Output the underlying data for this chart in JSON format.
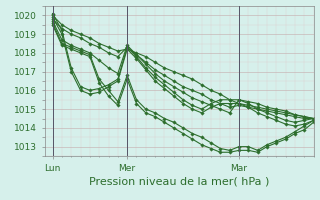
{
  "title": "Pression niveau de la mer( hPa )",
  "bg_color": "#d6f0eb",
  "plot_bg_color": "#d6f0eb",
  "grid_color_major": "#c8b8b8",
  "grid_color_minor": "#ddd0d0",
  "line_color": "#2d6e2d",
  "marker": "D",
  "markersize": 1.8,
  "linewidth": 0.8,
  "ylim": [
    1012.5,
    1020.5
  ],
  "yticks": [
    1013,
    1014,
    1015,
    1016,
    1017,
    1018,
    1019,
    1020
  ],
  "xtick_labels": [
    "Lun",
    "Mer",
    "Mar"
  ],
  "xtick_positions": [
    0,
    48,
    120
  ],
  "vline_positions": [
    0,
    48,
    120
  ],
  "title_fontsize": 8,
  "tick_fontsize": 6.5,
  "xlim": [
    -5,
    168
  ],
  "series": [
    {
      "x": [
        0,
        6,
        12,
        18,
        24,
        30,
        36,
        42,
        48,
        54,
        60,
        66,
        72,
        78,
        84,
        90,
        96,
        102,
        108,
        114,
        120,
        126,
        132,
        138,
        144,
        150,
        156,
        162,
        168
      ],
      "y": [
        1020.0,
        1019.5,
        1019.2,
        1019.0,
        1018.8,
        1018.5,
        1018.3,
        1018.1,
        1018.2,
        1018.0,
        1017.8,
        1017.5,
        1017.2,
        1017.0,
        1016.8,
        1016.6,
        1016.3,
        1016.0,
        1015.8,
        1015.5,
        1015.3,
        1015.2,
        1015.1,
        1015.0,
        1014.9,
        1014.8,
        1014.7,
        1014.6,
        1014.5
      ]
    },
    {
      "x": [
        0,
        6,
        12,
        18,
        24,
        30,
        36,
        42,
        48,
        54,
        60,
        66,
        72,
        78,
        84,
        90,
        96,
        102,
        108,
        114,
        120,
        126,
        132,
        138,
        144,
        150,
        156,
        162,
        168
      ],
      "y": [
        1019.8,
        1019.3,
        1019.0,
        1018.8,
        1018.5,
        1018.3,
        1018.0,
        1017.8,
        1018.3,
        1017.9,
        1017.5,
        1017.1,
        1016.8,
        1016.5,
        1016.2,
        1016.0,
        1015.8,
        1015.5,
        1015.3,
        1015.1,
        1015.2,
        1015.1,
        1015.0,
        1014.9,
        1014.8,
        1014.7,
        1014.6,
        1014.5,
        1014.5
      ]
    },
    {
      "x": [
        0,
        6,
        12,
        18,
        24,
        30,
        36,
        42,
        48,
        54,
        60,
        66,
        72,
        78,
        84,
        90,
        96,
        102,
        108,
        114,
        120,
        126,
        132,
        138,
        144,
        150,
        156,
        162,
        168
      ],
      "y": [
        1019.7,
        1018.7,
        1018.4,
        1018.2,
        1018.0,
        1017.6,
        1017.2,
        1016.9,
        1018.4,
        1017.9,
        1017.4,
        1016.9,
        1016.5,
        1016.2,
        1015.9,
        1015.6,
        1015.4,
        1015.2,
        1015.0,
        1014.8,
        1015.5,
        1015.4,
        1015.3,
        1015.1,
        1015.0,
        1014.9,
        1014.7,
        1014.6,
        1014.5
      ]
    },
    {
      "x": [
        0,
        6,
        12,
        18,
        24,
        30,
        36,
        42,
        48,
        54,
        60,
        66,
        72,
        78,
        84,
        90,
        96,
        102,
        108,
        114,
        120,
        126,
        132,
        138,
        144,
        150,
        156,
        162,
        168
      ],
      "y": [
        1020.1,
        1019.2,
        1017.2,
        1016.2,
        1016.0,
        1016.1,
        1016.3,
        1016.6,
        1018.3,
        1017.8,
        1017.2,
        1016.7,
        1016.3,
        1015.9,
        1015.5,
        1015.2,
        1015.0,
        1015.3,
        1015.5,
        1015.5,
        1015.5,
        1015.3,
        1015.0,
        1014.8,
        1014.6,
        1014.4,
        1014.3,
        1014.4,
        1014.5
      ]
    },
    {
      "x": [
        0,
        6,
        12,
        18,
        24,
        30,
        36,
        42,
        48,
        54,
        60,
        66,
        72,
        78,
        84,
        90,
        96,
        102,
        108,
        114,
        120,
        126,
        132,
        138,
        144,
        150,
        156,
        162,
        168
      ],
      "y": [
        1019.9,
        1019.0,
        1017.0,
        1016.0,
        1015.8,
        1015.9,
        1016.2,
        1016.5,
        1018.2,
        1017.7,
        1017.1,
        1016.5,
        1016.1,
        1015.7,
        1015.3,
        1015.0,
        1014.8,
        1015.1,
        1015.3,
        1015.3,
        1015.3,
        1015.1,
        1014.8,
        1014.6,
        1014.4,
        1014.2,
        1014.1,
        1014.2,
        1014.4
      ]
    },
    {
      "x": [
        0,
        6,
        12,
        18,
        24,
        30,
        36,
        42,
        48,
        54,
        60,
        66,
        72,
        78,
        84,
        90,
        96,
        102,
        108,
        114,
        120,
        126,
        132,
        138,
        144,
        150,
        156,
        162,
        168
      ],
      "y": [
        1019.6,
        1018.5,
        1018.3,
        1018.1,
        1017.9,
        1016.6,
        1016.0,
        1015.4,
        1016.8,
        1015.5,
        1015.0,
        1014.8,
        1014.5,
        1014.3,
        1014.0,
        1013.7,
        1013.5,
        1013.2,
        1012.9,
        1012.8,
        1013.0,
        1013.0,
        1012.8,
        1013.1,
        1013.3,
        1013.5,
        1013.8,
        1014.1,
        1014.4
      ]
    },
    {
      "x": [
        0,
        6,
        12,
        18,
        24,
        30,
        36,
        42,
        48,
        54,
        60,
        66,
        72,
        78,
        84,
        90,
        96,
        102,
        108,
        114,
        120,
        126,
        132,
        138,
        144,
        150,
        156,
        162,
        168
      ],
      "y": [
        1019.5,
        1018.4,
        1018.2,
        1018.0,
        1017.8,
        1016.4,
        1015.7,
        1015.2,
        1016.6,
        1015.3,
        1014.8,
        1014.6,
        1014.3,
        1014.0,
        1013.7,
        1013.4,
        1013.1,
        1012.9,
        1012.7,
        1012.7,
        1012.8,
        1012.8,
        1012.7,
        1013.0,
        1013.2,
        1013.4,
        1013.7,
        1013.9,
        1014.3
      ]
    }
  ]
}
